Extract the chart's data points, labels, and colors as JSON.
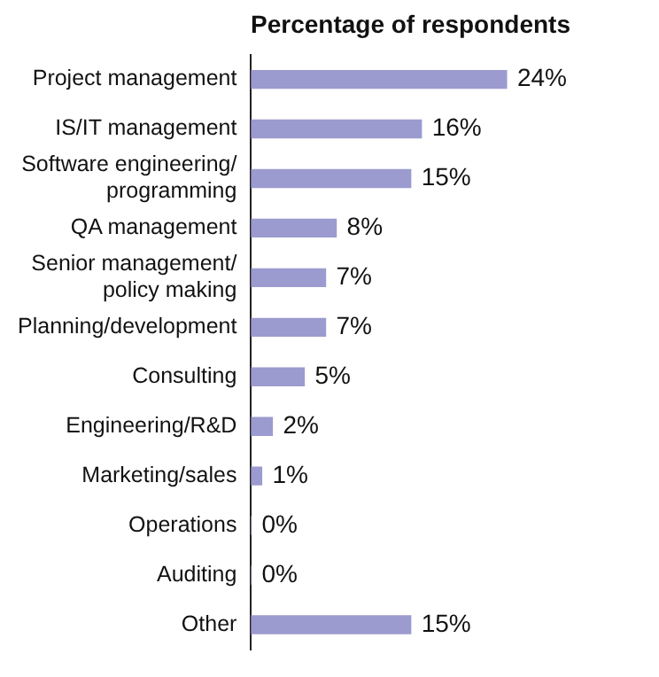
{
  "chart_data": {
    "type": "bar",
    "orientation": "horizontal",
    "title": "Percentage of respondents",
    "categories": [
      "Project management",
      "IS/IT management",
      "Software engineering/\nprogramming",
      "QA management",
      "Senior management/\npolicy making",
      "Planning/development",
      "Consulting",
      "Engineering/R&D",
      "Marketing/sales",
      "Operations",
      "Auditing",
      "Other"
    ],
    "values": [
      24,
      16,
      15,
      8,
      7,
      7,
      5,
      2,
      1,
      0,
      0,
      15
    ],
    "value_labels": [
      "24%",
      "16%",
      "15%",
      "8%",
      "7%",
      "7%",
      "5%",
      "2%",
      "1%",
      "0%",
      "0%",
      "15%"
    ],
    "color": "#9b9bcf",
    "grid": false,
    "legend": false,
    "tick_labels": "y"
  }
}
